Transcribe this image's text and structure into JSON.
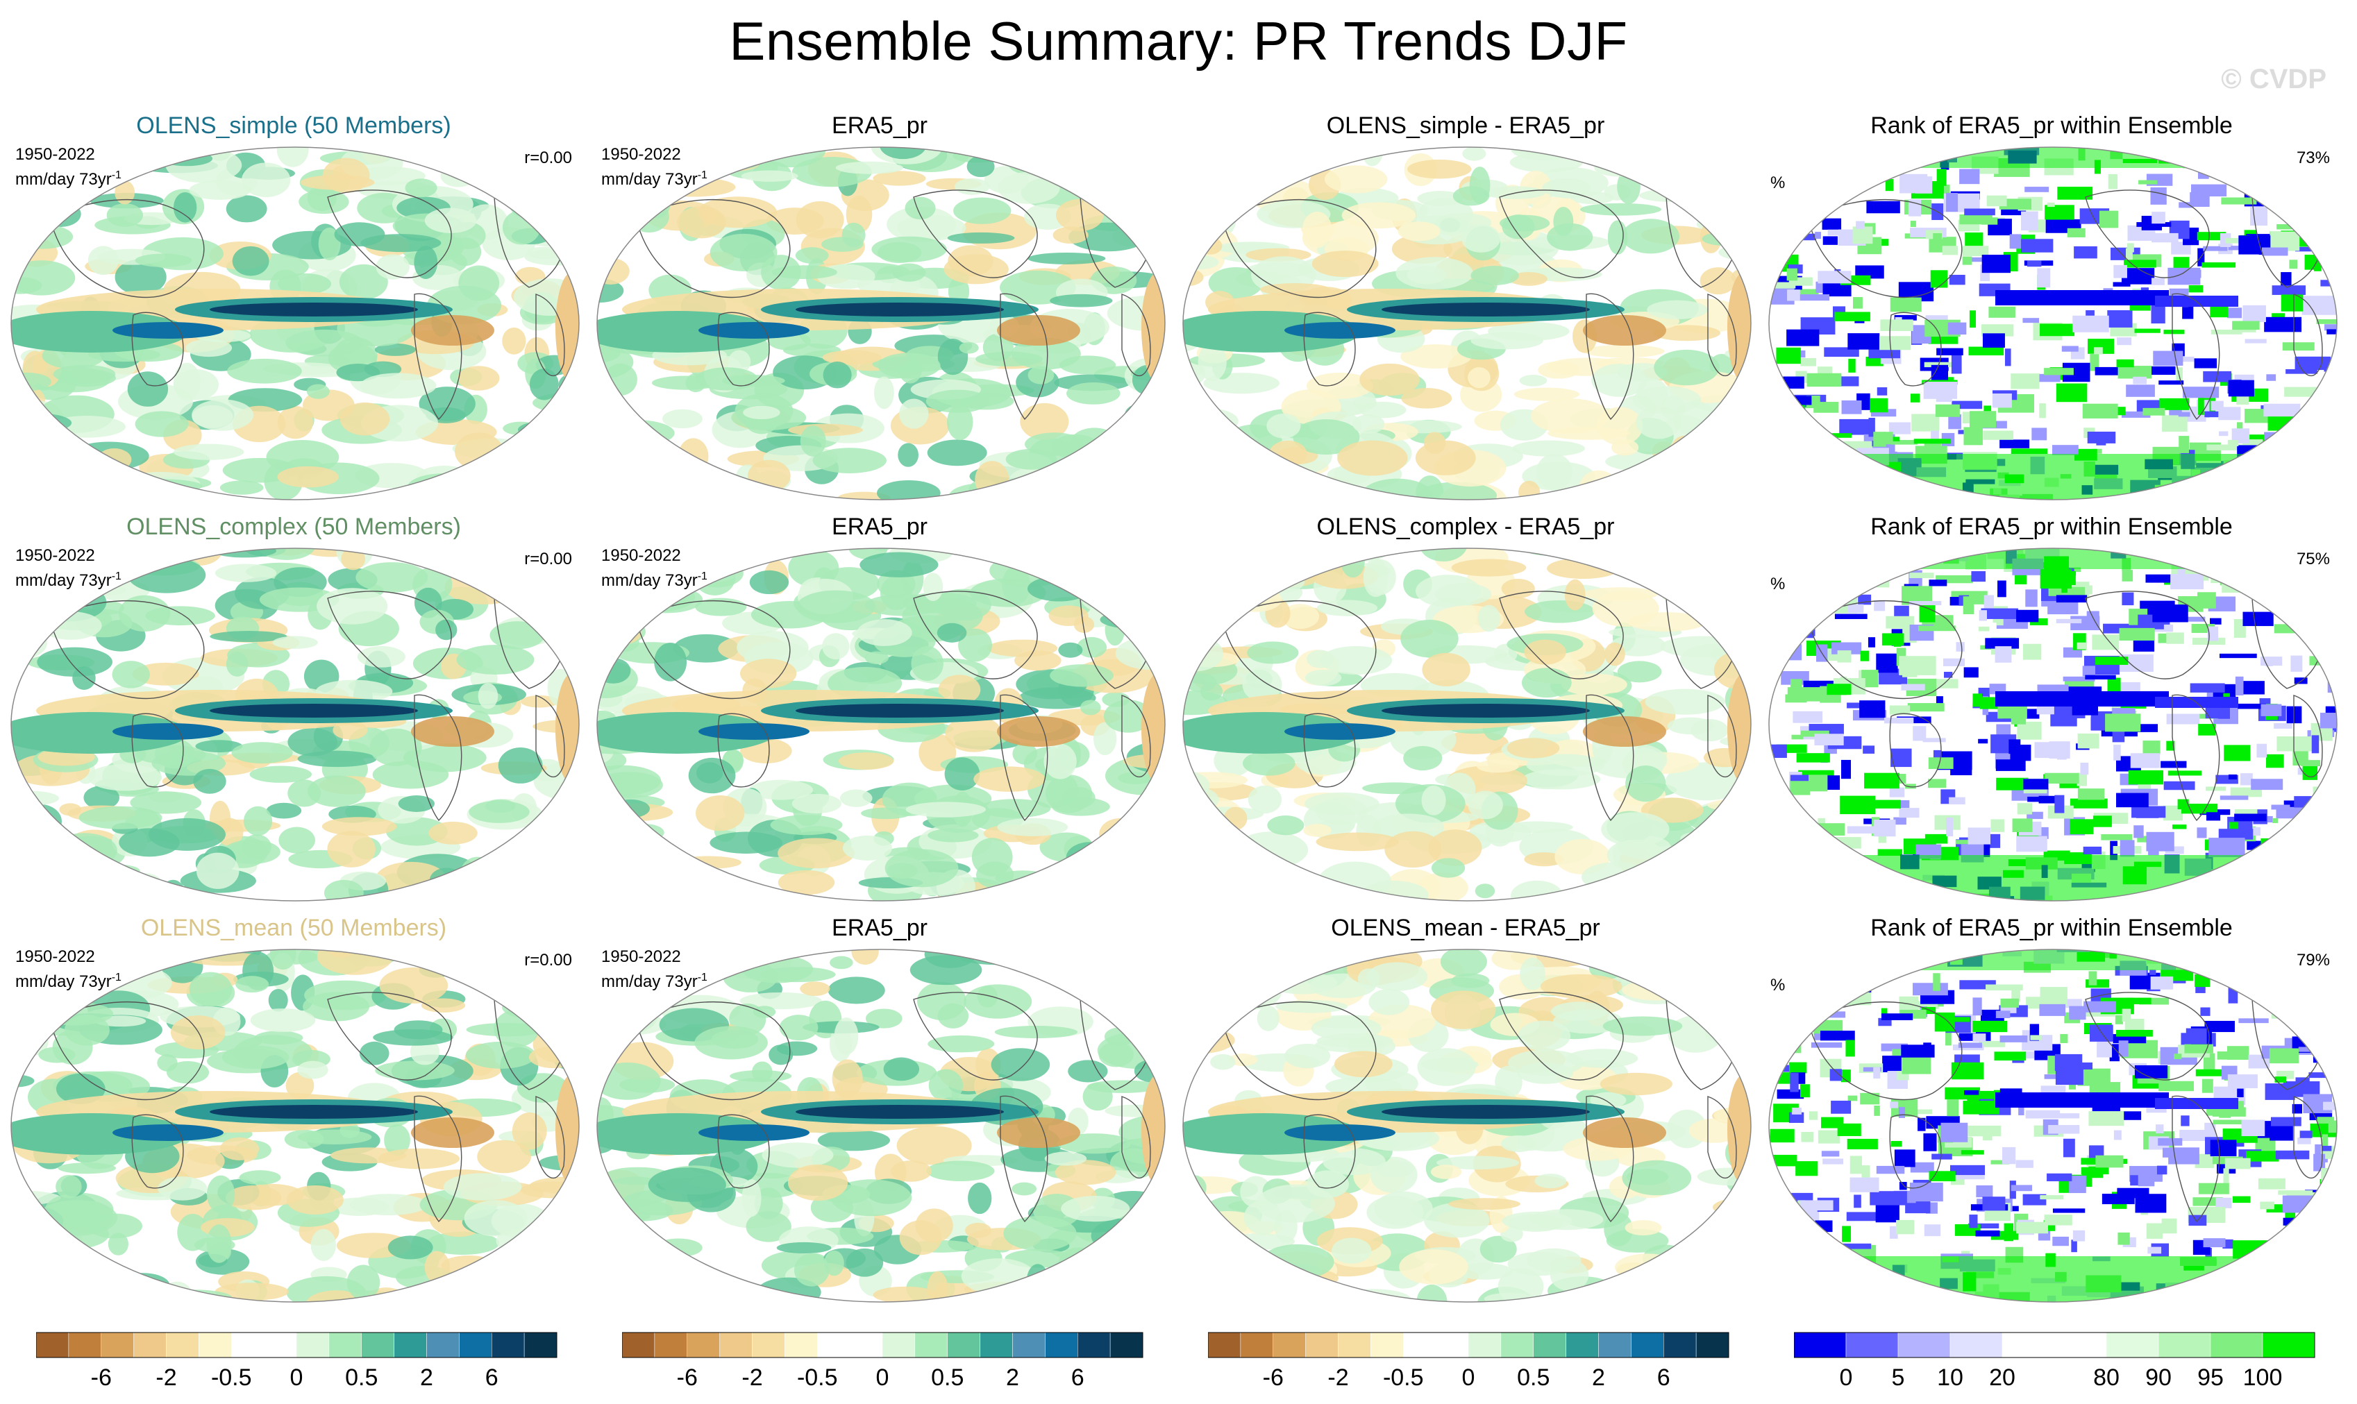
{
  "figure_title": "Ensemble Summary: PR Trends DJF",
  "watermark": "© CVDP",
  "rows": [
    {
      "model_title": "OLENS_simple (50 Members)",
      "model_title_color": "#1a6f8a",
      "period": "1950-2022",
      "units": "mm/day 73yr",
      "units_exp": "-1",
      "r": "r=0.00",
      "obs_title": "ERA5_pr",
      "diff_title": "OLENS_simple - ERA5_pr",
      "rank_title": "Rank of ERA5_pr within Ensemble",
      "rank_pct": "73%",
      "rank_units": "%"
    },
    {
      "model_title": "OLENS_complex (50 Members)",
      "model_title_color": "#5f8f62",
      "period": "1950-2022",
      "units": "mm/day 73yr",
      "units_exp": "-1",
      "r": "r=0.00",
      "obs_title": "ERA5_pr",
      "diff_title": "OLENS_complex - ERA5_pr",
      "rank_title": "Rank of ERA5_pr within Ensemble",
      "rank_pct": "75%",
      "rank_units": "%"
    },
    {
      "model_title": "OLENS_mean (50 Members)",
      "model_title_color": "#d9c58a",
      "period": "1950-2022",
      "units": "mm/day 73yr",
      "units_exp": "-1",
      "r": "r=0.00",
      "obs_title": "ERA5_pr",
      "diff_title": "OLENS_mean - ERA5_pr",
      "rank_title": "Rank of ERA5_pr within Ensemble",
      "rank_pct": "79%",
      "rank_units": "%"
    }
  ],
  "chart_data": {
    "type": "heatmap",
    "projection": "Robinson (global, Pacific-centred)",
    "trend_colorbar": {
      "colors": [
        "#a0622a",
        "#c07f3b",
        "#d9a35c",
        "#eec98a",
        "#f6dea2",
        "#fdf5cc",
        "#ffffff",
        "#ffffff",
        "#ddf7dd",
        "#a9eab9",
        "#62c59b",
        "#2e9b97",
        "#4d8fb5",
        "#0e6fa5",
        "#0b3f66",
        "#07334d"
      ],
      "tick_labels": [
        "-6",
        "-2",
        "-0.5",
        "0",
        "0.5",
        "2",
        "6"
      ],
      "units": "mm/day 73yr-1"
    },
    "rank_colorbar": {
      "colors": [
        "#0000ee",
        "#6666ff",
        "#b3b3ff",
        "#e0e0ff",
        "#ffffff",
        "#ffffff",
        "#e0fbe0",
        "#b8f5b8",
        "#80ee80",
        "#00ee00"
      ],
      "tick_labels": [
        "0",
        "5",
        "10",
        "20",
        "80",
        "90",
        "95",
        "100"
      ],
      "units": "%"
    },
    "panels": [
      "ensemble mean trend",
      "ERA5_pr trend",
      "ensemble minus ERA5_pr",
      "rank of ERA5_pr within ensemble"
    ]
  }
}
